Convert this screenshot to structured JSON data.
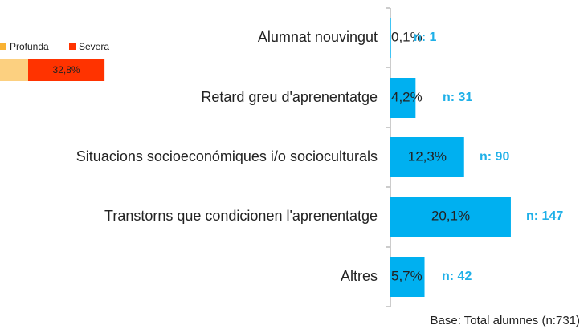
{
  "chart_data": [
    {
      "type": "hbar",
      "categories": [
        "Alumnat nouvingut",
        "Retard greu d'aprenentatge",
        "Situacions socioeconómiques i/o socioculturals",
        "Transtorns que condicionen l'aprenentatge",
        "Altres"
      ],
      "values": [
        0.1,
        4.2,
        12.3,
        20.1,
        5.7
      ],
      "value_labels": [
        "0,1%",
        "4,2%",
        "12,3%",
        "20,1%",
        "5,7%"
      ],
      "annotations": [
        "n: 1",
        "n: 31",
        "n: 90",
        "n: 147",
        "n: 42"
      ],
      "color": "#00b0f0",
      "footnote": "Base: Total alumnes (n:731)"
    },
    {
      "type": "stacked-fragment",
      "series": [
        {
          "name": "Profunda",
          "color": "#f9b233"
        },
        {
          "name": "Severa",
          "color": "#ff3300",
          "values": [
            32.8
          ],
          "value_labels": [
            "32,8%"
          ]
        }
      ]
    }
  ]
}
